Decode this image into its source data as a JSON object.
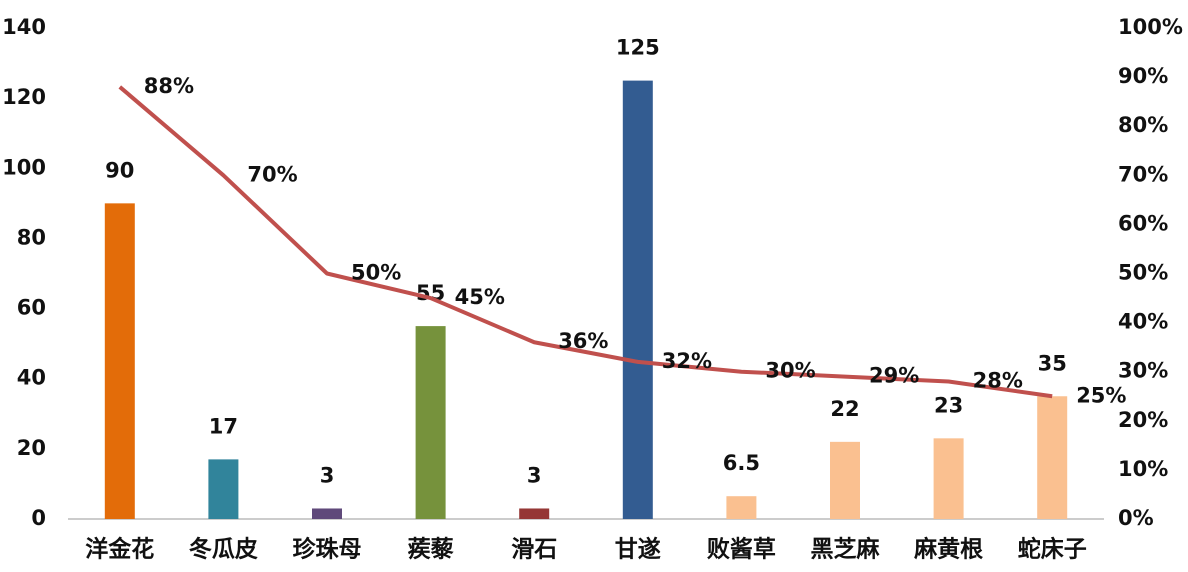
{
  "chart_data": {
    "type": "combo",
    "categories": [
      "洋金花",
      "冬瓜皮",
      "珍珠母",
      "蒺藜",
      "滑石",
      "甘遂",
      "败酱草",
      "黑芝麻",
      "麻黄根",
      "蛇床子"
    ],
    "bars": {
      "values": [
        90,
        17,
        3,
        55,
        3,
        125,
        6.5,
        22,
        23,
        35
      ],
      "colors": [
        "#e36c09",
        "#31849b",
        "#5f497a",
        "#76923c",
        "#953735",
        "#335c91",
        "#fac090",
        "#fac090",
        "#fac090",
        "#fac090"
      ]
    },
    "line": {
      "axis": "y2",
      "color": "#c0504d",
      "values": [
        88,
        70,
        50,
        45,
        36,
        32,
        30,
        29,
        28,
        25
      ],
      "value_labels": [
        "88%",
        "70%",
        "50%",
        "45%",
        "36%",
        "32%",
        "30%",
        "29%",
        "28%",
        "25%"
      ]
    },
    "ylim": [
      0,
      140
    ],
    "yticks": [
      0,
      20,
      40,
      60,
      80,
      100,
      120,
      140
    ],
    "y2lim": [
      0,
      100
    ],
    "y2ticks": [
      {
        "value": 0,
        "label": "0%"
      },
      {
        "value": 10,
        "label": "10%"
      },
      {
        "value": 20,
        "label": "20%"
      },
      {
        "value": 30,
        "label": "30%"
      },
      {
        "value": 40,
        "label": "40%"
      },
      {
        "value": 50,
        "label": "50%"
      },
      {
        "value": 60,
        "label": "60%"
      },
      {
        "value": 70,
        "label": "70%"
      },
      {
        "value": 80,
        "label": "80%"
      },
      {
        "value": 90,
        "label": "90%"
      },
      {
        "value": 100,
        "label": "100%"
      }
    ],
    "grid": false
  }
}
